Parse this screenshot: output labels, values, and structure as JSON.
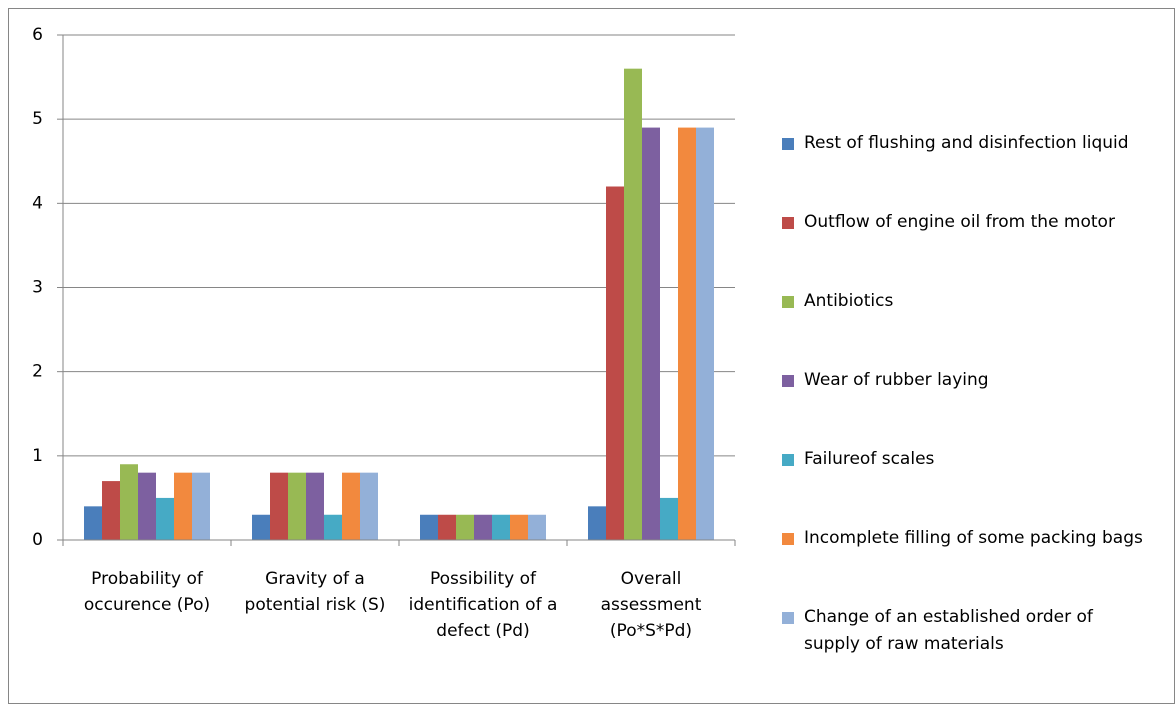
{
  "chart_data": {
    "type": "bar",
    "categories": [
      "Probability of occurence (Po)",
      "Gravity of a potential risk (S)",
      "Possibility of identification of a defect (Pd)",
      "Overall assessment (Po*S*Pd)"
    ],
    "series": [
      {
        "name": "Rest of flushing and disinfection liquid",
        "color": "#4a7ebb",
        "values": [
          0.4,
          0.3,
          0.3,
          0.4
        ]
      },
      {
        "name": "Outflow of engine oil from the motor",
        "color": "#be4b48",
        "values": [
          0.7,
          0.8,
          0.3,
          4.2
        ]
      },
      {
        "name": "Antibiotics",
        "color": "#98b954",
        "values": [
          0.9,
          0.8,
          0.3,
          5.6
        ]
      },
      {
        "name": "Wear of rubber laying",
        "color": "#7d60a0",
        "values": [
          0.8,
          0.8,
          0.3,
          4.9
        ]
      },
      {
        "name": "Failureof scales",
        "color": "#46aac5",
        "values": [
          0.5,
          0.3,
          0.3,
          0.5
        ]
      },
      {
        "name": "Incomplete filling of some packing bags",
        "color": "#f2893e",
        "values": [
          0.8,
          0.8,
          0.3,
          4.9
        ]
      },
      {
        "name": "Change of an established order of supply of raw materials",
        "color": "#93b0d8",
        "values": [
          0.8,
          0.8,
          0.3,
          4.9
        ]
      }
    ],
    "ylim": [
      0,
      6
    ],
    "yticks": [
      0,
      1,
      2,
      3,
      4,
      5,
      6
    ],
    "grid": true,
    "legend": "right"
  }
}
